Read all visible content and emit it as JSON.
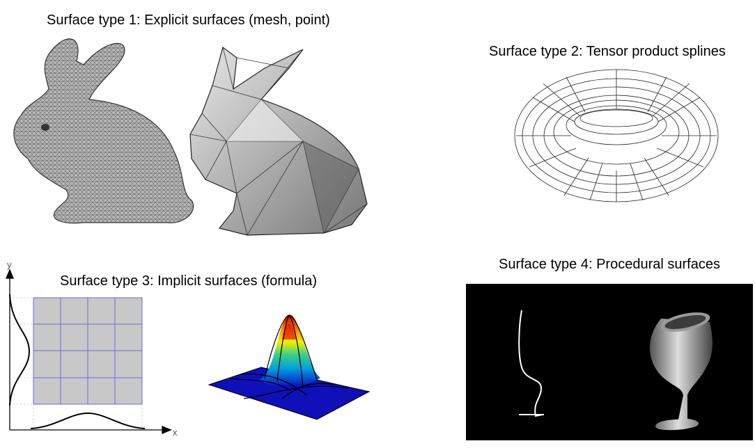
{
  "panels": {
    "type1": {
      "caption": "Surface type 1: Explicit surfaces (mesh, point)"
    },
    "type2": {
      "caption": "Surface type 2: Tensor product splines"
    },
    "type3": {
      "caption": "Surface type 3: Implicit surfaces (formula)",
      "axis_x_label": "x",
      "axis_y_label": "y"
    },
    "type4": {
      "caption": "Surface type 4: Procedural surfaces"
    }
  },
  "colors": {
    "mesh_fill": "#bfbfbf",
    "mesh_dark": "#6e6e6e",
    "grid_fill": "#c8c8c8",
    "grid_line": "#6a6ad8",
    "procedural_bg": "#000000"
  }
}
